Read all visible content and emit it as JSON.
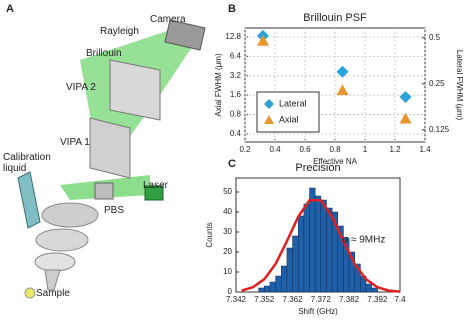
{
  "panels": [
    "A",
    "B",
    "C"
  ],
  "diagram": {
    "labels": [
      "Camera",
      "Rayleigh",
      "Brillouin",
      "VIPA 2",
      "VIPA 1",
      "Calibration liquid",
      "Laser",
      "PBS",
      "Sample"
    ]
  },
  "chart_data": [
    {
      "type": "scatter",
      "title": "Brillouin PSF",
      "x_label": "Effective NA",
      "y_label": "Axial FWHM (μm)",
      "y2_label": "Lateral FWHM (μm)",
      "xlim": [
        0.2,
        1.4
      ],
      "xticks": [
        0.2,
        0.4,
        0.6,
        0.8,
        1,
        1.2,
        1.4
      ],
      "ylim": [
        0.3,
        17.6
      ],
      "yticks": [
        0.4,
        0.8,
        1.6,
        3.2,
        6.4,
        12.8
      ],
      "y2lim": [
        0.104,
        0.58
      ],
      "y2ticks": [
        0.125,
        0.25,
        0.5
      ],
      "log_y": true,
      "log_y2": true,
      "grid": true,
      "legend": "lower left",
      "series": [
        {
          "name": "Lateral",
          "color": "#2aa3d8",
          "marker": "diamond",
          "axis": "y2",
          "x": [
            0.32,
            0.85,
            1.27
          ],
          "values": [
            0.515,
            0.3,
            0.205
          ]
        },
        {
          "name": "Axial",
          "color": "#e8962e",
          "marker": "triangle",
          "x": [
            0.32,
            0.85,
            1.27
          ],
          "values": [
            11.1,
            1.9,
            0.69
          ]
        }
      ]
    },
    {
      "type": "histogram",
      "title": "Precision",
      "x_label": "Shift (GHz)",
      "y_label": "Counts",
      "xlim": [
        7.342,
        7.4
      ],
      "xticks": [
        7.342,
        7.352,
        7.362,
        7.372,
        7.382,
        7.392,
        7.4
      ],
      "ylim": [
        0,
        57
      ],
      "yticks": [
        0,
        10,
        20,
        30,
        40,
        50
      ],
      "color": "#1f5fa8",
      "bins": [
        7.35,
        7.352,
        7.354,
        7.356,
        7.358,
        7.36,
        7.362,
        7.364,
        7.366,
        7.368,
        7.37,
        7.372,
        7.374,
        7.376,
        7.378,
        7.38,
        7.382,
        7.384,
        7.386,
        7.388,
        7.39,
        7.392
      ],
      "counts": [
        2,
        3,
        5,
        8,
        13,
        22,
        28,
        38,
        44,
        52,
        48,
        46,
        42,
        40,
        33,
        27,
        20,
        14,
        8,
        4,
        2
      ],
      "fit": {
        "color": "#e02020",
        "x": [
          7.344,
          7.348,
          7.352,
          7.356,
          7.36,
          7.364,
          7.368,
          7.372,
          7.376,
          7.38,
          7.384,
          7.388,
          7.392,
          7.396,
          7.4
        ],
        "values": [
          0.7,
          2.4,
          6.4,
          14.0,
          25.4,
          37.6,
          45.9,
          45.9,
          37.6,
          25.4,
          14.0,
          6.4,
          2.4,
          0.7,
          0.2
        ]
      },
      "annotation": "σ ≈ 9MHz"
    }
  ]
}
